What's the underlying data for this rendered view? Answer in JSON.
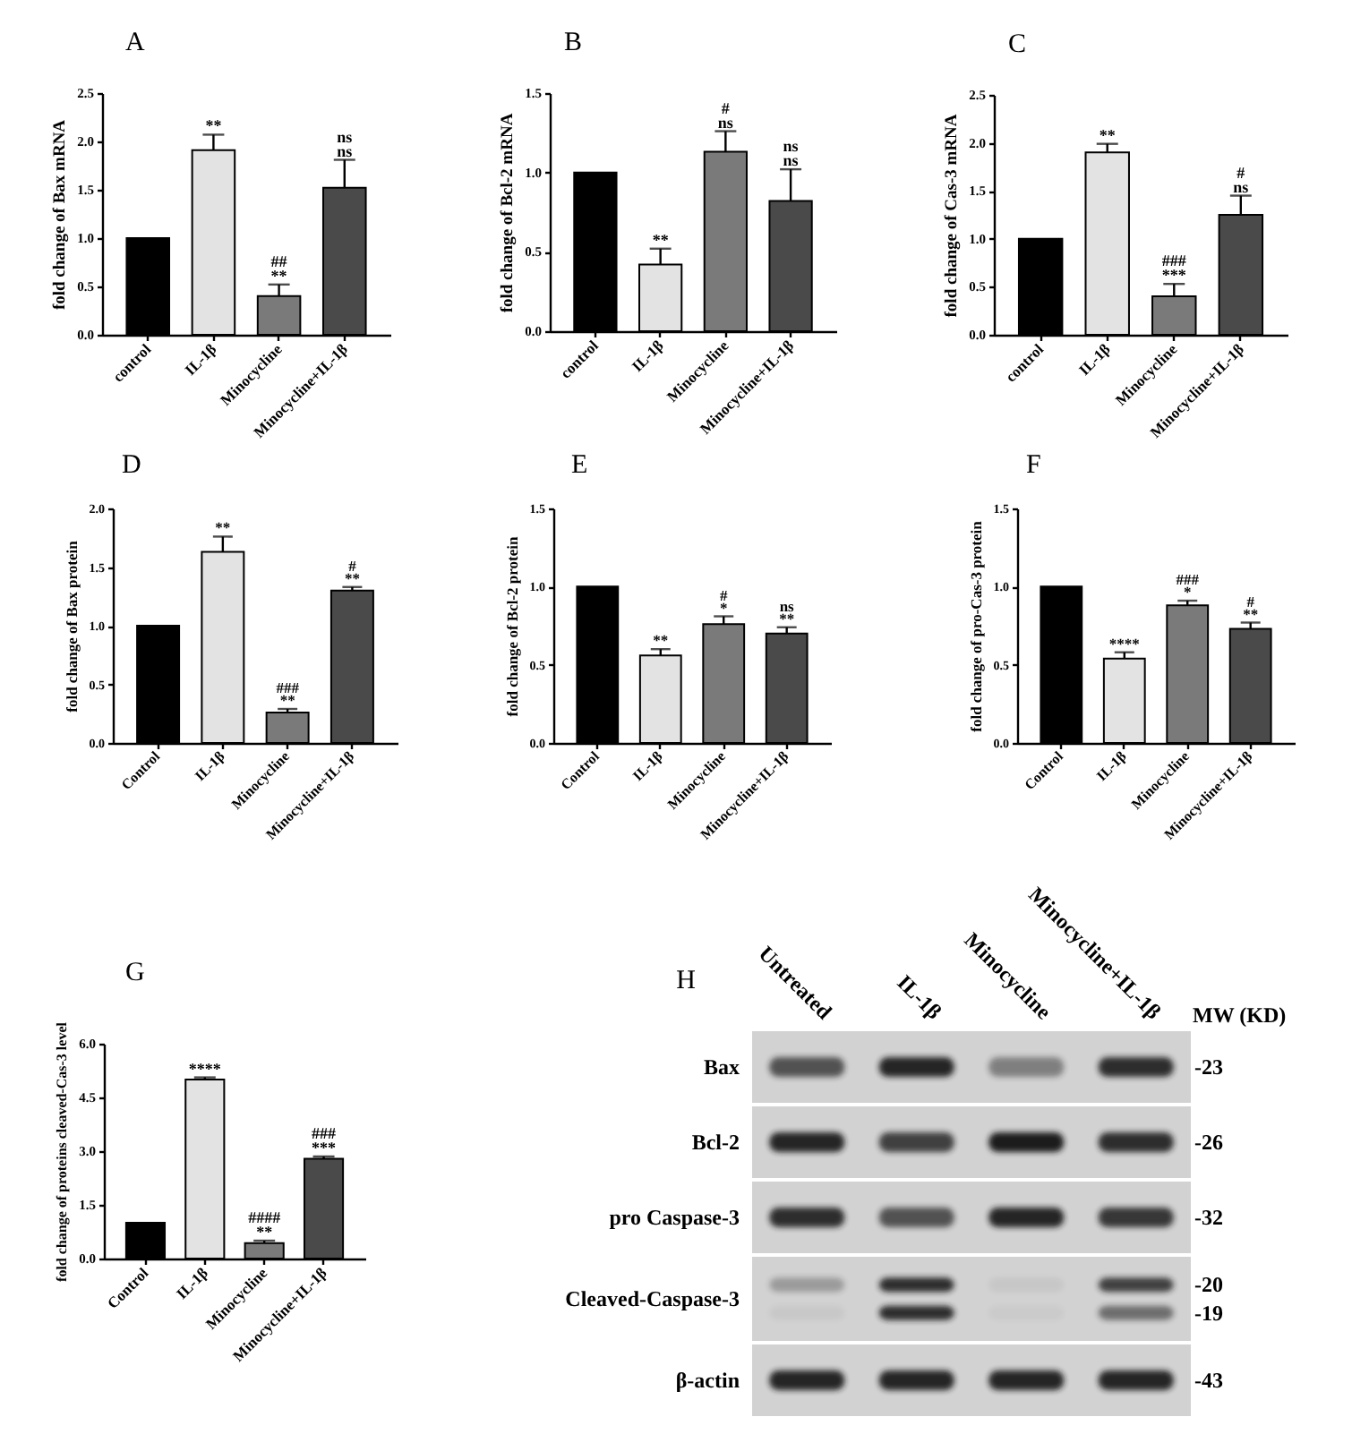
{
  "chart_data": [
    {
      "type": "bar",
      "title": "A",
      "ylabel": "fold change of Bax mRNA",
      "categories": [
        "control",
        "IL-1β",
        "Minocycline",
        "Minocycline+IL-1β"
      ],
      "colors": [
        "#000000",
        "#e3e3e3",
        "#7a7a7a",
        "#4a4a4a"
      ],
      "values": [
        1.0,
        1.91,
        0.4,
        1.52
      ],
      "errors": [
        null,
        [
          1.91,
          2.07
        ],
        [
          0.4,
          0.52
        ],
        [
          1.52,
          1.81
        ]
      ],
      "ylim": [
        0,
        2.5
      ],
      "yticks": [
        {
          "value": 0,
          "label": "0.0"
        },
        0.5,
        {
          "value": 1,
          "label": "1.0"
        },
        1.5,
        {
          "value": 2,
          "label": "2.0"
        },
        2.5
      ],
      "annotations": [
        {
          "text": "**",
          "x": "IL-1β",
          "y": 2.07
        },
        {
          "text": "**",
          "x": "Minocycline",
          "y": 0.52
        },
        {
          "text": "##",
          "x": "Minocycline",
          "y": 0.52
        },
        {
          "text": "ns",
          "x": "Minocycline+IL-1β",
          "y": 1.81
        },
        {
          "text": "ns",
          "x": "Minocycline+IL-1β",
          "y": 1.81
        }
      ]
    },
    {
      "type": "bar",
      "title": "B",
      "ylabel": "fold change of Bcl-2 mRNA",
      "categories": [
        "control",
        "IL-1β",
        "Minocycline",
        "Minocycline+IL-1β"
      ],
      "colors": [
        "#000000",
        "#e3e3e3",
        "#7a7a7a",
        "#4a4a4a"
      ],
      "values": [
        1.0,
        0.42,
        1.13,
        0.82
      ],
      "errors": [
        null,
        [
          0.42,
          0.52
        ],
        [
          1.13,
          1.26
        ],
        [
          0.82,
          1.02
        ]
      ],
      "ylim": [
        0,
        1.5
      ],
      "yticks": [
        {
          "value": 0,
          "label": "0.0"
        },
        0.5,
        {
          "value": 1,
          "label": "1.0"
        },
        1.5
      ],
      "annotations": [
        {
          "text": "**",
          "x": "IL-1β",
          "y": 0.52
        },
        {
          "text": "ns",
          "x": "Minocycline",
          "y": 1.26
        },
        {
          "text": "#",
          "x": "Minocycline",
          "y": 1.26
        },
        {
          "text": "ns",
          "x": "Minocycline+IL-1β",
          "y": 1.02
        },
        {
          "text": "ns",
          "x": "Minocycline+IL-1β",
          "y": 1.02
        }
      ]
    },
    {
      "type": "bar",
      "title": "C",
      "ylabel": "fold change of Cas-3 mRNA",
      "categories": [
        "control",
        "IL-1β",
        "Minocycline",
        "Minocycline+IL-1β"
      ],
      "colors": [
        "#000000",
        "#e3e3e3",
        "#7a7a7a",
        "#4a4a4a"
      ],
      "values": [
        1.0,
        1.9,
        0.4,
        1.25
      ],
      "errors": [
        null,
        [
          1.9,
          1.99
        ],
        [
          0.4,
          0.53
        ],
        [
          1.25,
          1.45
        ]
      ],
      "ylim": [
        0,
        2.5
      ],
      "yticks": [
        {
          "value": 0,
          "label": "0.0"
        },
        0.5,
        {
          "value": 1,
          "label": "1.0"
        },
        1.5,
        {
          "value": 2,
          "label": "2.0"
        },
        2.5
      ],
      "annotations": [
        {
          "text": "**",
          "x": "IL-1β",
          "y": 1.99
        },
        {
          "text": "***",
          "x": "Minocycline",
          "y": 0.53
        },
        {
          "text": "###",
          "x": "Minocycline",
          "y": 0.53
        },
        {
          "text": "ns",
          "x": "Minocycline+IL-1β",
          "y": 1.45
        },
        {
          "text": "#",
          "x": "Minocycline+IL-1β",
          "y": 1.45
        }
      ]
    },
    {
      "type": "bar",
      "title": "D",
      "ylabel": "fold change of Bax protein",
      "categories": [
        "Control",
        "IL-1β",
        "Minocycline",
        "Minocycline+IL-1β"
      ],
      "colors": [
        "#000000",
        "#e3e3e3",
        "#7a7a7a",
        "#4a4a4a"
      ],
      "values": [
        1.0,
        1.63,
        0.26,
        1.3
      ],
      "errors": [
        null,
        [
          1.63,
          1.76
        ],
        [
          0.26,
          0.29
        ],
        [
          1.3,
          1.33
        ]
      ],
      "ylim": [
        0,
        2
      ],
      "yticks": [
        {
          "value": 0,
          "label": "0.0"
        },
        0.5,
        {
          "value": 1,
          "label": "1.0"
        },
        1.5,
        {
          "value": 2,
          "label": "2.0"
        }
      ],
      "annotations": [
        {
          "text": "**",
          "x": "IL-1β",
          "y": 1.76
        },
        {
          "text": "**",
          "x": "Minocycline",
          "y": 0.29
        },
        {
          "text": "###",
          "x": "Minocycline",
          "y": 0.29
        },
        {
          "text": "**",
          "x": "Minocycline+IL-1β",
          "y": 1.33
        },
        {
          "text": "#",
          "x": "Minocycline+IL-1β",
          "y": 1.33
        }
      ]
    },
    {
      "type": "bar",
      "title": "E",
      "ylabel": "fold change of Bcl-2 protein",
      "categories": [
        "Control",
        "IL-1β",
        "Minocycline",
        "Minocycline+IL-1β"
      ],
      "colors": [
        "#000000",
        "#e3e3e3",
        "#7a7a7a",
        "#4a4a4a"
      ],
      "values": [
        1.0,
        0.56,
        0.76,
        0.7
      ],
      "errors": [
        null,
        [
          0.56,
          0.6
        ],
        [
          0.76,
          0.81
        ],
        [
          0.7,
          0.74
        ]
      ],
      "ylim": [
        0,
        1.5
      ],
      "yticks": [
        {
          "value": 0,
          "label": "0.0"
        },
        0.5,
        {
          "value": 1,
          "label": "1.0"
        },
        1.5
      ],
      "annotations": [
        {
          "text": "**",
          "x": "IL-1β",
          "y": 0.6
        },
        {
          "text": "*",
          "x": "Minocycline",
          "y": 0.81
        },
        {
          "text": "#",
          "x": "Minocycline",
          "y": 0.81
        },
        {
          "text": "**",
          "x": "Minocycline+IL-1β",
          "y": 0.74
        },
        {
          "text": "ns",
          "x": "Minocycline+IL-1β",
          "y": 0.74
        }
      ]
    },
    {
      "type": "bar",
      "title": "F",
      "ylabel": "fold change of pro-Cas-3 protein",
      "categories": [
        "Control",
        "IL-1β",
        "Minocycline",
        "Minocycline+IL-1β"
      ],
      "colors": [
        "#000000",
        "#e3e3e3",
        "#7a7a7a",
        "#4a4a4a"
      ],
      "values": [
        1.0,
        0.54,
        0.88,
        0.73
      ],
      "errors": [
        null,
        [
          0.54,
          0.58
        ],
        [
          0.88,
          0.91
        ],
        [
          0.73,
          0.77
        ]
      ],
      "ylim": [
        0,
        1.5
      ],
      "yticks": [
        {
          "value": 0,
          "label": "0.0"
        },
        0.5,
        {
          "value": 1,
          "label": "1.0"
        },
        1.5
      ],
      "annotations": [
        {
          "text": "****",
          "x": "IL-1β",
          "y": 0.58
        },
        {
          "text": "*",
          "x": "Minocycline",
          "y": 0.91
        },
        {
          "text": "###",
          "x": "Minocycline",
          "y": 0.91
        },
        {
          "text": "**",
          "x": "Minocycline+IL-1β",
          "y": 0.77
        },
        {
          "text": "#",
          "x": "Minocycline+IL-1β",
          "y": 0.77
        }
      ]
    },
    {
      "type": "bar",
      "title": "G",
      "ylabel": "fold change of proteins cleaved-Cas-3 level",
      "categories": [
        "Control",
        "IL-1β",
        "Minocycline",
        "Minocycline+IL-1β"
      ],
      "colors": [
        "#000000",
        "#e3e3e3",
        "#7a7a7a",
        "#4a4a4a"
      ],
      "values": [
        1.0,
        5.0,
        0.43,
        2.79
      ],
      "errors": [
        null,
        [
          5.0,
          5.06
        ],
        [
          0.43,
          0.5
        ],
        [
          2.79,
          2.85
        ]
      ],
      "ylim": [
        0,
        6
      ],
      "yticks": [
        {
          "value": 0,
          "label": "0.0"
        },
        1.5,
        {
          "value": 3,
          "label": "3.0"
        },
        4.5,
        {
          "value": 6,
          "label": "6.0"
        }
      ],
      "annotations": [
        {
          "text": "****",
          "x": "IL-1β",
          "y": 5.06
        },
        {
          "text": "**",
          "x": "Minocycline",
          "y": 0.5
        },
        {
          "text": "####",
          "x": "Minocycline",
          "y": 0.5
        },
        {
          "text": "***",
          "x": "Minocycline+IL-1β",
          "y": 2.85
        },
        {
          "text": "###",
          "x": "Minocycline+IL-1β",
          "y": 2.85
        }
      ]
    },
    {
      "type": "other",
      "title": "H",
      "categories": [
        "Untreated",
        "IL-1β",
        "Minocycline",
        "Minocycline+IL-1β"
      ],
      "y_categories": [
        "Bax",
        "Bcl-2",
        "pro Caspase-3",
        "Cleaved-Caspase-3",
        "β-actin"
      ],
      "annotations": [
        "MW (KD)",
        {
          "text": "-23",
          "y": "Bax"
        },
        {
          "text": "-26",
          "y": "Bcl-2"
        },
        {
          "text": "-32",
          "y": "pro Caspase-3"
        },
        {
          "text": "-20",
          "y": "Cleaved-Caspase-3"
        },
        {
          "text": "-19",
          "y": "Cleaved-Caspase-3"
        },
        {
          "text": "-43",
          "y": "β-actin"
        }
      ]
    }
  ]
}
